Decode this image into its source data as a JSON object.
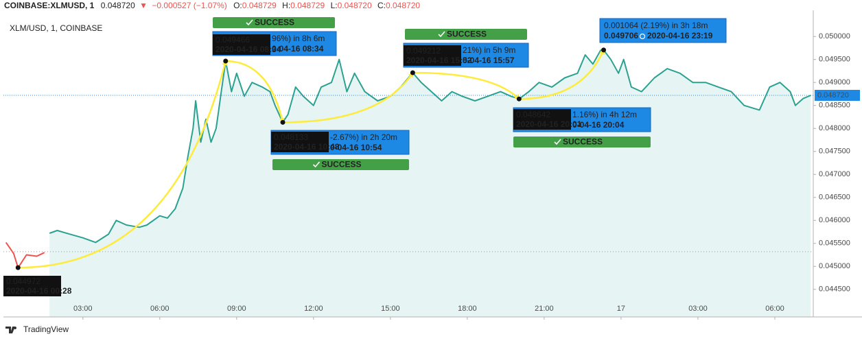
{
  "chart_data": {
    "type": "line",
    "header": {
      "symbol": "COINBASE:XLMUSD, 1",
      "last": "0.048720",
      "change": "−0.000527 (−1.07%)",
      "o_label": "O:",
      "o": "0.048729",
      "h_label": "H:",
      "h": "0.048729",
      "l_label": "L:",
      "l": "0.048720",
      "c_label": "C:",
      "c": "0.048720"
    },
    "title": "XLM/USD, 1, COINBASE",
    "footer": "TradingView",
    "xlim": [
      -0.1,
      31.5
    ],
    "xticks": [
      {
        "value": 3,
        "label": "03:00"
      },
      {
        "value": 6,
        "label": "06:00"
      },
      {
        "value": 9,
        "label": "09:00"
      },
      {
        "value": 12,
        "label": "12:00"
      },
      {
        "value": 15,
        "label": "15:00"
      },
      {
        "value": 18,
        "label": "18:00"
      },
      {
        "value": 21,
        "label": "21:00"
      },
      {
        "value": 24,
        "label": "17"
      },
      {
        "value": 27,
        "label": "03:00"
      },
      {
        "value": 30,
        "label": "06:00"
      }
    ],
    "ylim": [
      0.0439,
      0.05057
    ],
    "yticks": [
      {
        "value": 0.0445,
        "label": "0.044500"
      },
      {
        "value": 0.045,
        "label": "0.045000"
      },
      {
        "value": 0.0455,
        "label": "0.045500"
      },
      {
        "value": 0.046,
        "label": "0.046000"
      },
      {
        "value": 0.0465,
        "label": "0.046500"
      },
      {
        "value": 0.047,
        "label": "0.047000"
      },
      {
        "value": 0.0475,
        "label": "0.047500"
      },
      {
        "value": 0.048,
        "label": "0.048000"
      },
      {
        "value": 0.0485,
        "label": "0.048500"
      },
      {
        "value": 0.049,
        "label": "0.049000"
      },
      {
        "value": 0.0495,
        "label": "0.049500"
      },
      {
        "value": 0.05,
        "label": "0.050000"
      }
    ],
    "last_price": {
      "value": 0.04872,
      "label": "0.048720"
    },
    "reference_line": 0.04532,
    "series": [
      {
        "color": "#ef5350",
        "x": [
          0,
          0.3,
          0.47,
          0.8,
          1.2,
          1.5
        ],
        "values": [
          0.04552,
          0.04528,
          0.04497,
          0.04525,
          0.04522,
          0.0453
        ]
      },
      {
        "color": "#2ba190",
        "fill": "#e6f5f3",
        "x": [
          1.7,
          2.0,
          2.5,
          3.0,
          3.5,
          4.0,
          4.3,
          4.7,
          5.2,
          5.5,
          6.0,
          6.3,
          6.6,
          6.9,
          7.1,
          7.3,
          7.4,
          7.6,
          7.8,
          8.0,
          8.2,
          8.3,
          8.4,
          8.57,
          8.8,
          9.0,
          9.3,
          9.6,
          10.0,
          10.3,
          10.5,
          10.8,
          11.0,
          11.3,
          11.6,
          12.0,
          12.3,
          12.7,
          13.0,
          13.3,
          13.6,
          14.0,
          14.5,
          15.0,
          15.4,
          15.87,
          16.2,
          16.6,
          17.0,
          17.4,
          17.8,
          18.3,
          18.8,
          19.3,
          19.7,
          20.02,
          20.4,
          20.8,
          21.3,
          21.8,
          22.3,
          22.6,
          22.9,
          23.2,
          23.32,
          23.6,
          23.9,
          24.1,
          24.4,
          24.8,
          25.3,
          25.8,
          26.3,
          26.8,
          27.3,
          27.8,
          28.3,
          28.8,
          29.4,
          29.8,
          30.2,
          30.6,
          30.8,
          31.1,
          31.4
        ],
        "values": [
          0.04572,
          0.04578,
          0.0457,
          0.04562,
          0.04552,
          0.0457,
          0.046,
          0.0459,
          0.04585,
          0.0459,
          0.0461,
          0.04605,
          0.04625,
          0.0467,
          0.0474,
          0.048,
          0.0486,
          0.0477,
          0.0482,
          0.0477,
          0.048,
          0.0484,
          0.0488,
          0.049466,
          0.0488,
          0.0492,
          0.0487,
          0.049,
          0.0489,
          0.0488,
          0.0485,
          0.048133,
          0.0483,
          0.0489,
          0.0487,
          0.0485,
          0.0489,
          0.049,
          0.0495,
          0.0488,
          0.0492,
          0.0488,
          0.0486,
          0.0487,
          0.0489,
          0.049212,
          0.049,
          0.0488,
          0.0486,
          0.0488,
          0.0487,
          0.0486,
          0.0487,
          0.0488,
          0.0487,
          0.048642,
          0.0488,
          0.049,
          0.0489,
          0.0491,
          0.0492,
          0.0496,
          0.0494,
          0.0497,
          0.049706,
          0.0495,
          0.0492,
          0.0495,
          0.0489,
          0.0488,
          0.0491,
          0.0493,
          0.0492,
          0.049,
          0.049,
          0.0489,
          0.0488,
          0.0485,
          0.0484,
          0.0489,
          0.049,
          0.0488,
          0.0485,
          0.04865,
          0.04872
        ]
      }
    ],
    "points": [
      {
        "x": 0.47,
        "value": 0.044972,
        "time": "2020-04-16 00:28"
      },
      {
        "x": 8.57,
        "value": 0.049466,
        "time": "2020-04-16 08:34"
      },
      {
        "x": 10.8,
        "value": 0.048133,
        "time": "2020-04-16 10:48"
      },
      {
        "x": 15.87,
        "value": 0.049212,
        "time": "2020-04-16 15:52"
      },
      {
        "x": 20.02,
        "value": 0.048642,
        "time": "2020-04-16 20:01"
      },
      {
        "x": 23.32,
        "value": 0.049706
      }
    ],
    "moves": [
      {
        "text": "96%) in 8h 6m",
        "time": "0-04-16  08:34",
        "status": "SUCCESS"
      },
      {
        "text": "-2.67%) in 2h 20m",
        "time": "0-04-16  10:54",
        "status": "SUCCESS"
      },
      {
        "text": "21%) in 5h 9m",
        "time": "0-04-16  15:57",
        "status": "SUCCESS"
      },
      {
        "text": "1.16%) in 4h 12m",
        "time": "0-04-16  20:04",
        "status": "SUCCESS"
      },
      {
        "text": "0.001064 (2.19%) in 3h 18m",
        "time": "2020-04-16  23:19"
      }
    ]
  }
}
